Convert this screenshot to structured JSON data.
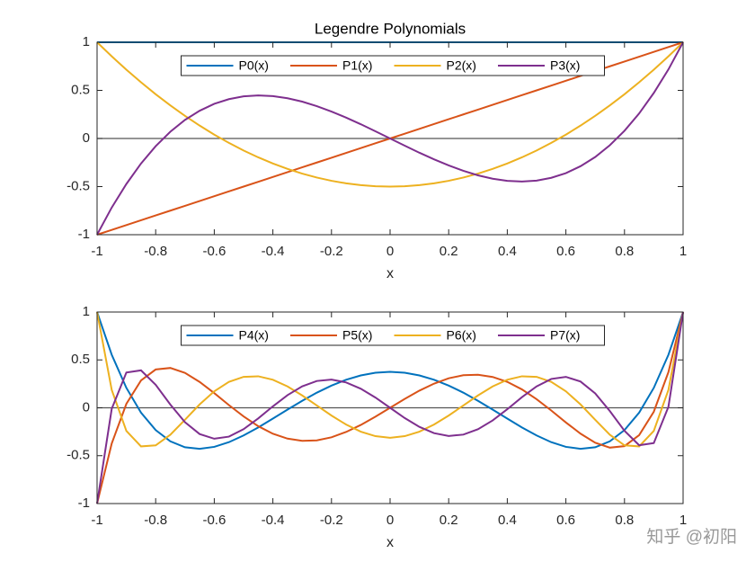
{
  "chart_data": [
    {
      "type": "line",
      "title": "Legendre Polynomials",
      "xlabel": "x",
      "x": [
        -1,
        -0.95,
        -0.9,
        -0.85,
        -0.8,
        -0.75,
        -0.7,
        -0.65,
        -0.6,
        -0.55,
        -0.5,
        -0.45,
        -0.4,
        -0.35,
        -0.3,
        -0.25,
        -0.2,
        -0.15,
        -0.1,
        -0.05,
        0,
        0.05,
        0.1,
        0.15,
        0.2,
        0.25,
        0.3,
        0.35,
        0.4,
        0.45,
        0.5,
        0.55,
        0.6,
        0.65,
        0.7,
        0.75,
        0.8,
        0.85,
        0.9,
        0.95,
        1
      ],
      "series": [
        {
          "name": "P0(x)",
          "color": "#0072BD",
          "values": [
            1,
            1,
            1,
            1,
            1,
            1,
            1,
            1,
            1,
            1,
            1,
            1,
            1,
            1,
            1,
            1,
            1,
            1,
            1,
            1,
            1,
            1,
            1,
            1,
            1,
            1,
            1,
            1,
            1,
            1,
            1,
            1,
            1,
            1,
            1,
            1,
            1,
            1,
            1,
            1,
            1
          ]
        },
        {
          "name": "P1(x)",
          "color": "#D95319",
          "values": [
            -1,
            -0.95,
            -0.9,
            -0.85,
            -0.8,
            -0.75,
            -0.7,
            -0.65,
            -0.6,
            -0.55,
            -0.5,
            -0.45,
            -0.4,
            -0.35,
            -0.3,
            -0.25,
            -0.2,
            -0.15,
            -0.1,
            -0.05,
            0,
            0.05,
            0.1,
            0.15,
            0.2,
            0.25,
            0.3,
            0.35,
            0.4,
            0.45,
            0.5,
            0.55,
            0.6,
            0.65,
            0.7,
            0.75,
            0.8,
            0.85,
            0.9,
            0.95,
            1
          ]
        },
        {
          "name": "P2(x)",
          "color": "#EDB120",
          "values": [
            1,
            0.854,
            0.715,
            0.584,
            0.46,
            0.344,
            0.235,
            0.134,
            0.04,
            -0.046,
            -0.125,
            -0.196,
            -0.26,
            -0.316,
            -0.365,
            -0.406,
            -0.44,
            -0.466,
            -0.485,
            -0.496,
            -0.5,
            -0.496,
            -0.485,
            -0.466,
            -0.44,
            -0.406,
            -0.365,
            -0.316,
            -0.26,
            -0.196,
            -0.125,
            -0.046,
            0.04,
            0.134,
            0.235,
            0.344,
            0.46,
            0.584,
            0.715,
            0.854,
            1
          ]
        },
        {
          "name": "P3(x)",
          "color": "#7E2F8E",
          "values": [
            -1,
            -0.718,
            -0.473,
            -0.26,
            -0.08,
            0.07,
            0.193,
            0.288,
            0.36,
            0.409,
            0.438,
            0.447,
            0.44,
            0.418,
            0.383,
            0.336,
            0.28,
            0.217,
            0.148,
            0.075,
            0,
            -0.075,
            -0.148,
            -0.217,
            -0.28,
            -0.336,
            -0.383,
            -0.418,
            -0.44,
            -0.447,
            -0.438,
            -0.409,
            -0.36,
            -0.288,
            -0.193,
            -0.07,
            0.08,
            0.26,
            0.473,
            0.718,
            1
          ]
        }
      ],
      "xlim": [
        -1,
        1
      ],
      "ylim": [
        -1,
        1
      ],
      "xticks": [
        -1,
        -0.8,
        -0.6,
        -0.4,
        -0.2,
        0,
        0.2,
        0.4,
        0.6,
        0.8,
        1
      ],
      "yticks": [
        -1,
        -0.5,
        0,
        0.5,
        1
      ],
      "hline": 0,
      "legend": "top",
      "grid": false
    },
    {
      "type": "line",
      "xlabel": "x",
      "x": [
        -1,
        -0.95,
        -0.9,
        -0.85,
        -0.8,
        -0.75,
        -0.7,
        -0.65,
        -0.6,
        -0.55,
        -0.5,
        -0.45,
        -0.4,
        -0.35,
        -0.3,
        -0.25,
        -0.2,
        -0.15,
        -0.1,
        -0.05,
        0,
        0.05,
        0.1,
        0.15,
        0.2,
        0.25,
        0.3,
        0.35,
        0.4,
        0.45,
        0.5,
        0.55,
        0.6,
        0.65,
        0.7,
        0.75,
        0.8,
        0.85,
        0.9,
        0.95,
        1
      ],
      "series": [
        {
          "name": "P4(x)",
          "color": "#0072BD",
          "values": [
            1,
            0.554,
            0.208,
            -0.051,
            -0.233,
            -0.35,
            -0.412,
            -0.428,
            -0.408,
            -0.359,
            -0.289,
            -0.205,
            -0.113,
            -0.019,
            0.073,
            0.158,
            0.232,
            0.293,
            0.338,
            0.366,
            0.375,
            0.366,
            0.338,
            0.293,
            0.232,
            0.158,
            0.073,
            -0.019,
            -0.113,
            -0.205,
            -0.289,
            -0.359,
            -0.408,
            -0.428,
            -0.412,
            -0.35,
            -0.233,
            -0.051,
            0.208,
            0.554,
            1
          ]
        },
        {
          "name": "P5(x)",
          "color": "#D95319",
          "values": [
            -1,
            -0.373,
            0.041,
            0.286,
            0.4,
            0.416,
            0.365,
            0.27,
            0.153,
            0.028,
            -0.09,
            -0.192,
            -0.271,
            -0.322,
            -0.345,
            -0.34,
            -0.308,
            -0.252,
            -0.179,
            -0.093,
            0,
            0.093,
            0.179,
            0.252,
            0.308,
            0.34,
            0.345,
            0.322,
            0.271,
            0.192,
            0.09,
            -0.028,
            -0.153,
            -0.27,
            -0.365,
            -0.416,
            -0.4,
            -0.286,
            -0.041,
            0.373,
            1
          ]
        },
        {
          "name": "P6(x)",
          "color": "#EDB120",
          "values": [
            1,
            0.187,
            -0.241,
            -0.403,
            -0.392,
            -0.281,
            -0.125,
            0.035,
            0.172,
            0.271,
            0.323,
            0.329,
            0.293,
            0.223,
            0.129,
            0.024,
            -0.081,
            -0.175,
            -0.249,
            -0.296,
            -0.313,
            -0.296,
            -0.249,
            -0.175,
            -0.081,
            0.024,
            0.129,
            0.223,
            0.293,
            0.329,
            0.323,
            0.271,
            0.172,
            0.035,
            -0.125,
            -0.281,
            -0.392,
            -0.403,
            -0.241,
            0.187,
            1
          ]
        },
        {
          "name": "P7(x)",
          "color": "#7E2F8E",
          "values": [
            -1,
            -0.011,
            0.368,
            0.391,
            0.24,
            0.034,
            -0.15,
            -0.274,
            -0.323,
            -0.301,
            -0.223,
            -0.111,
            0.015,
            0.132,
            0.224,
            0.28,
            0.294,
            0.265,
            0.199,
            0.107,
            0,
            -0.107,
            -0.199,
            -0.265,
            -0.294,
            -0.28,
            -0.224,
            -0.132,
            -0.015,
            0.111,
            0.223,
            0.301,
            0.323,
            0.274,
            0.15,
            -0.034,
            -0.24,
            -0.391,
            -0.368,
            0.011,
            1
          ]
        }
      ],
      "xlim": [
        -1,
        1
      ],
      "ylim": [
        -1,
        1
      ],
      "xticks": [
        -1,
        -0.8,
        -0.6,
        -0.4,
        -0.2,
        0,
        0.2,
        0.4,
        0.6,
        0.8,
        1
      ],
      "yticks": [
        -1,
        -0.5,
        0,
        0.5,
        1
      ],
      "hline": 0,
      "legend": "top",
      "grid": false
    }
  ],
  "watermark": "知乎 @初阳"
}
